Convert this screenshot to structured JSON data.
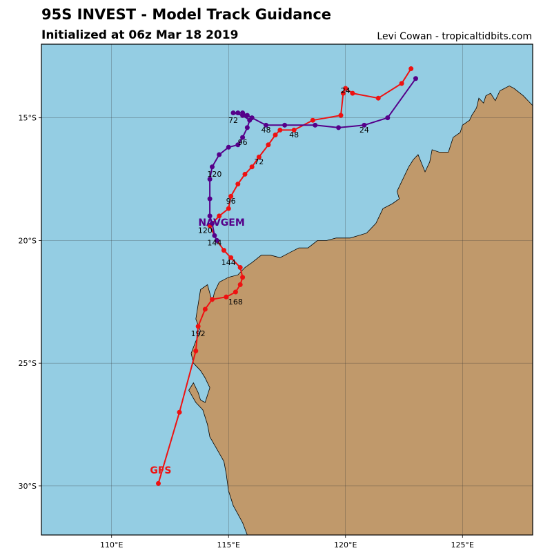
{
  "title": "95S INVEST - Model Track Guidance",
  "subtitle": "Initialized at 06z Mar 18 2019",
  "credit": "Levi Cowan - tropicaltidbits.com",
  "map": {
    "lon_range": [
      107,
      128
    ],
    "lat_range": [
      -32,
      -12
    ],
    "ocean_color": "#94cde3",
    "land_color": "#c0996b",
    "grid": true,
    "x_ticks": [
      {
        "value": 110,
        "label": "110°E"
      },
      {
        "value": 115,
        "label": "115°E"
      },
      {
        "value": 120,
        "label": "120°E"
      },
      {
        "value": 125,
        "label": "125°E"
      }
    ],
    "y_ticks": [
      {
        "value": -15,
        "label": "15°S"
      },
      {
        "value": -20,
        "label": "20°S"
      },
      {
        "value": -25,
        "label": "25°S"
      },
      {
        "value": -30,
        "label": "30°S"
      }
    ],
    "coastline": [
      [
        128.0,
        -14.5
      ],
      [
        127.6,
        -14.1
      ],
      [
        127.2,
        -13.8
      ],
      [
        127.0,
        -13.7
      ],
      [
        126.8,
        -13.8
      ],
      [
        126.6,
        -13.9
      ],
      [
        126.4,
        -14.3
      ],
      [
        126.2,
        -14.0
      ],
      [
        126.0,
        -14.1
      ],
      [
        125.9,
        -14.4
      ],
      [
        125.7,
        -14.2
      ],
      [
        125.6,
        -14.6
      ],
      [
        125.4,
        -14.9
      ],
      [
        125.3,
        -15.1
      ],
      [
        125.0,
        -15.3
      ],
      [
        124.9,
        -15.6
      ],
      [
        124.6,
        -15.8
      ],
      [
        124.4,
        -16.4
      ],
      [
        124.0,
        -16.4
      ],
      [
        123.7,
        -16.3
      ],
      [
        123.6,
        -16.8
      ],
      [
        123.4,
        -17.2
      ],
      [
        123.1,
        -16.5
      ],
      [
        122.9,
        -16.7
      ],
      [
        122.7,
        -17.0
      ],
      [
        122.3,
        -17.8
      ],
      [
        122.2,
        -18.0
      ],
      [
        122.3,
        -18.3
      ],
      [
        122.0,
        -18.5
      ],
      [
        121.6,
        -18.7
      ],
      [
        121.3,
        -19.3
      ],
      [
        120.9,
        -19.7
      ],
      [
        120.2,
        -19.9
      ],
      [
        119.6,
        -19.9
      ],
      [
        119.2,
        -20.0
      ],
      [
        118.8,
        -20.0
      ],
      [
        118.4,
        -20.3
      ],
      [
        118.0,
        -20.3
      ],
      [
        117.6,
        -20.5
      ],
      [
        117.2,
        -20.7
      ],
      [
        116.8,
        -20.6
      ],
      [
        116.4,
        -20.6
      ],
      [
        116.0,
        -20.9
      ],
      [
        115.7,
        -21.1
      ],
      [
        115.4,
        -21.4
      ],
      [
        115.0,
        -21.5
      ],
      [
        114.6,
        -21.7
      ],
      [
        114.4,
        -22.1
      ],
      [
        114.3,
        -22.5
      ],
      [
        114.1,
        -21.8
      ],
      [
        113.8,
        -22.0
      ],
      [
        113.7,
        -22.6
      ],
      [
        113.6,
        -23.2
      ],
      [
        113.8,
        -23.7
      ],
      [
        113.6,
        -24.1
      ],
      [
        113.4,
        -24.6
      ],
      [
        113.5,
        -25.0
      ],
      [
        113.8,
        -25.3
      ],
      [
        114.0,
        -25.6
      ],
      [
        114.2,
        -26.0
      ],
      [
        114.1,
        -26.3
      ],
      [
        114.0,
        -26.6
      ],
      [
        113.8,
        -26.5
      ],
      [
        113.7,
        -26.2
      ],
      [
        113.5,
        -25.8
      ],
      [
        113.3,
        -26.1
      ],
      [
        113.6,
        -26.6
      ],
      [
        113.9,
        -26.9
      ],
      [
        114.1,
        -27.5
      ],
      [
        114.2,
        -28.0
      ],
      [
        114.5,
        -28.5
      ],
      [
        114.8,
        -29.0
      ],
      [
        114.9,
        -29.5
      ],
      [
        115.0,
        -30.2
      ],
      [
        115.2,
        -30.8
      ],
      [
        115.6,
        -31.5
      ],
      [
        115.8,
        -32.0
      ],
      [
        128.0,
        -32.0
      ]
    ]
  },
  "chart_data": {
    "type": "map-tracks",
    "xlabel": "",
    "ylabel": "",
    "series": [
      {
        "name": "GFS",
        "color": "#ee1111",
        "label_point": [
          112.1,
          -29.5
        ],
        "points": [
          [
            122.8,
            -13.0
          ],
          [
            122.4,
            -13.6
          ],
          [
            121.4,
            -14.2
          ],
          [
            120.3,
            -14.0
          ],
          [
            120.0,
            -13.8
          ],
          [
            119.9,
            -14.0
          ],
          [
            119.8,
            -14.9
          ],
          [
            118.6,
            -15.1
          ],
          [
            117.8,
            -15.5
          ],
          [
            117.2,
            -15.5
          ],
          [
            117.0,
            -15.7
          ],
          [
            116.7,
            -16.1
          ],
          [
            116.3,
            -16.6
          ],
          [
            116.0,
            -17.0
          ],
          [
            115.7,
            -17.3
          ],
          [
            115.4,
            -17.7
          ],
          [
            115.1,
            -18.2
          ],
          [
            115.0,
            -18.7
          ],
          [
            114.6,
            -19.0
          ],
          [
            114.2,
            -19.4
          ],
          [
            114.5,
            -20.0
          ],
          [
            114.8,
            -20.4
          ],
          [
            115.1,
            -20.7
          ],
          [
            115.5,
            -21.1
          ],
          [
            115.6,
            -21.5
          ],
          [
            115.5,
            -21.8
          ],
          [
            115.3,
            -22.1
          ],
          [
            114.9,
            -22.3
          ],
          [
            114.3,
            -22.4
          ],
          [
            114.0,
            -22.8
          ],
          [
            113.7,
            -23.5
          ],
          [
            113.6,
            -24.5
          ],
          [
            112.9,
            -27.0
          ],
          [
            112.0,
            -29.9
          ]
        ],
        "tau_labels": [
          {
            "text": "24",
            "at": [
              120.0,
              -14.0
            ]
          },
          {
            "text": "48",
            "at": [
              117.8,
              -15.8
            ]
          },
          {
            "text": "72",
            "at": [
              116.3,
              -16.9
            ]
          },
          {
            "text": "96",
            "at": [
              115.1,
              -18.5
            ]
          },
          {
            "text": "120",
            "at": [
              114.0,
              -19.7
            ]
          },
          {
            "text": "144",
            "at": [
              115.0,
              -21.0
            ]
          },
          {
            "text": "168",
            "at": [
              115.3,
              -22.6
            ]
          },
          {
            "text": "192",
            "at": [
              113.7,
              -23.9
            ]
          }
        ]
      },
      {
        "name": "NAVGEM",
        "color": "#55008a",
        "label_point": [
          114.7,
          -19.4
        ],
        "points": [
          [
            123.0,
            -13.4
          ],
          [
            121.8,
            -15.0
          ],
          [
            120.8,
            -15.3
          ],
          [
            119.7,
            -15.4
          ],
          [
            118.7,
            -15.3
          ],
          [
            117.4,
            -15.3
          ],
          [
            116.6,
            -15.3
          ],
          [
            116.0,
            -15.0
          ],
          [
            115.8,
            -14.9
          ],
          [
            115.6,
            -14.8
          ],
          [
            115.4,
            -14.8
          ],
          [
            115.2,
            -14.8
          ],
          [
            115.6,
            -14.9
          ],
          [
            115.9,
            -15.1
          ],
          [
            115.8,
            -15.4
          ],
          [
            115.6,
            -15.8
          ],
          [
            115.4,
            -16.1
          ],
          [
            115.0,
            -16.2
          ],
          [
            114.6,
            -16.5
          ],
          [
            114.3,
            -17.0
          ],
          [
            114.2,
            -17.5
          ],
          [
            114.2,
            -18.3
          ],
          [
            114.2,
            -19.0
          ],
          [
            114.3,
            -19.3
          ],
          [
            114.4,
            -19.8
          ],
          [
            114.5,
            -20.0
          ]
        ],
        "tau_labels": [
          {
            "text": "24",
            "at": [
              120.8,
              -15.6
            ]
          },
          {
            "text": "48",
            "at": [
              116.6,
              -15.6
            ]
          },
          {
            "text": "72",
            "at": [
              115.2,
              -15.2
            ]
          },
          {
            "text": "96",
            "at": [
              115.6,
              -16.1
            ]
          },
          {
            "text": "120",
            "at": [
              114.4,
              -17.4
            ]
          },
          {
            "text": "144",
            "at": [
              114.4,
              -20.2
            ]
          }
        ]
      }
    ]
  }
}
